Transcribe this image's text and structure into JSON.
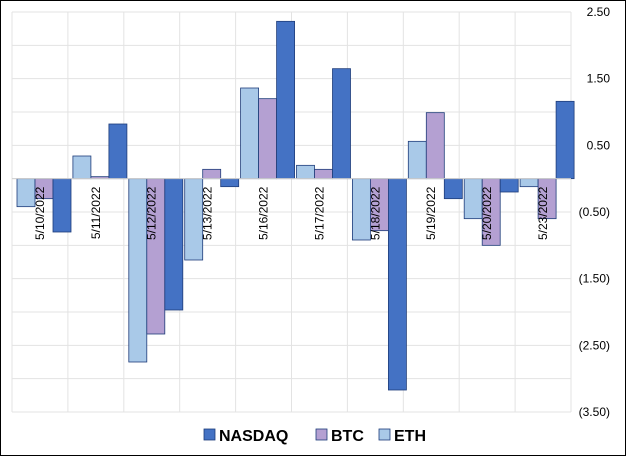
{
  "chart_data": {
    "type": "bar",
    "categories": [
      "5/10/2022",
      "5/11/2022",
      "5/12/2022",
      "5/13/2022",
      "5/16/2022",
      "5/17/2022",
      "5/18/2022",
      "5/19/2022",
      "5/20/2022",
      "5/23/2022"
    ],
    "series": [
      {
        "name": "NASDAQ",
        "color": "#4472C4",
        "values": [
          -0.8,
          0.82,
          -1.97,
          -0.12,
          2.36,
          1.65,
          -3.17,
          -0.3,
          -0.2,
          1.16
        ]
      },
      {
        "name": "BTC",
        "color": "#B4A0D2",
        "values": [
          -0.3,
          0.03,
          -2.33,
          0.14,
          1.2,
          0.14,
          -0.78,
          0.99,
          -1.0,
          -0.6
        ]
      },
      {
        "name": "ETH",
        "color": "#A9C9E8",
        "values": [
          -0.42,
          0.34,
          -2.75,
          -1.22,
          1.36,
          0.2,
          -0.92,
          0.56,
          -0.6,
          -0.12
        ]
      }
    ],
    "y_ticks": [
      "2.50",
      "1.50",
      "0.50",
      "(0.50)",
      "(1.50)",
      "(2.50)",
      "(3.50)"
    ],
    "ylim": [
      -3.5,
      2.5
    ],
    "y_axis_position": "right",
    "legend_position": "bottom",
    "grid": true,
    "title": "",
    "xlabel": "",
    "ylabel": ""
  }
}
